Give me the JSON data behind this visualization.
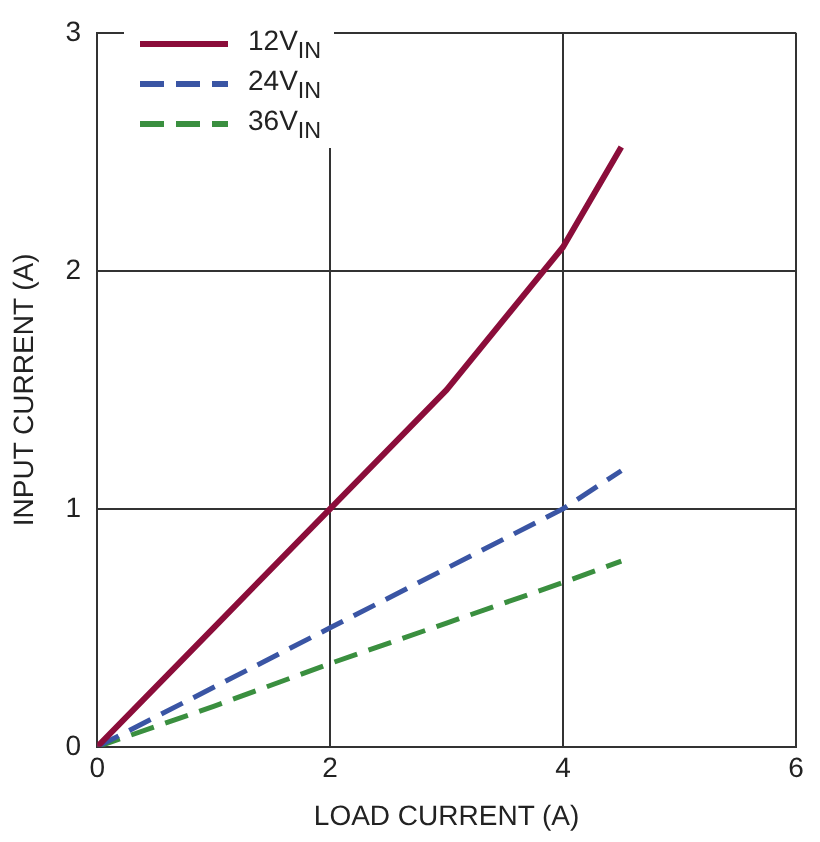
{
  "chart_data": {
    "type": "line",
    "xlabel": "LOAD CURRENT (A)",
    "ylabel": "INPUT CURRENT (A)",
    "xlim": [
      0,
      6
    ],
    "xticks": [
      0,
      2,
      4,
      6
    ],
    "ylim": [
      0,
      3
    ],
    "yticks": [
      0,
      1,
      2,
      3
    ],
    "grid": true,
    "legend": "top left",
    "marker": "none",
    "series": [
      {
        "name": "12V$_{IN}$",
        "color": "#8b0d3a",
        "line_style": "solid",
        "x": [
          0,
          1,
          2,
          3,
          4,
          4.5
        ],
        "values": [
          0,
          0.5,
          1.0,
          1.5,
          2.1,
          2.52
        ]
      },
      {
        "name": "24V$_{IN}$",
        "color": "#3a55a4",
        "line_style": "dashed",
        "x": [
          0,
          1,
          2,
          3,
          4,
          4.5
        ],
        "values": [
          0,
          0.25,
          0.5,
          0.75,
          1.0,
          1.16
        ]
      },
      {
        "name": "36V$_{IN}$",
        "color": "#3a8f3f",
        "line_style": "dashed",
        "x": [
          0,
          1,
          2,
          3,
          4,
          4.5
        ],
        "values": [
          0,
          0.17,
          0.35,
          0.52,
          0.69,
          0.78
        ]
      }
    ]
  }
}
